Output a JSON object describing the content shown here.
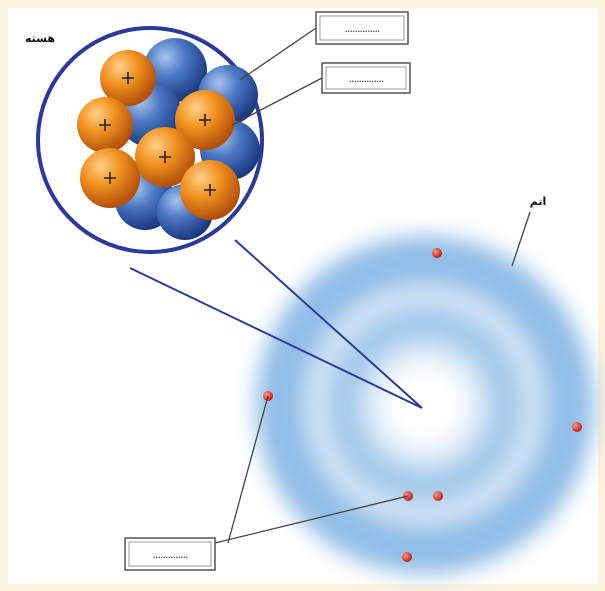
{
  "nucleus_label": "هسته",
  "atom_label": "اتم",
  "answer_boxes": [
    "..............",
    "..............",
    ".............."
  ]
}
